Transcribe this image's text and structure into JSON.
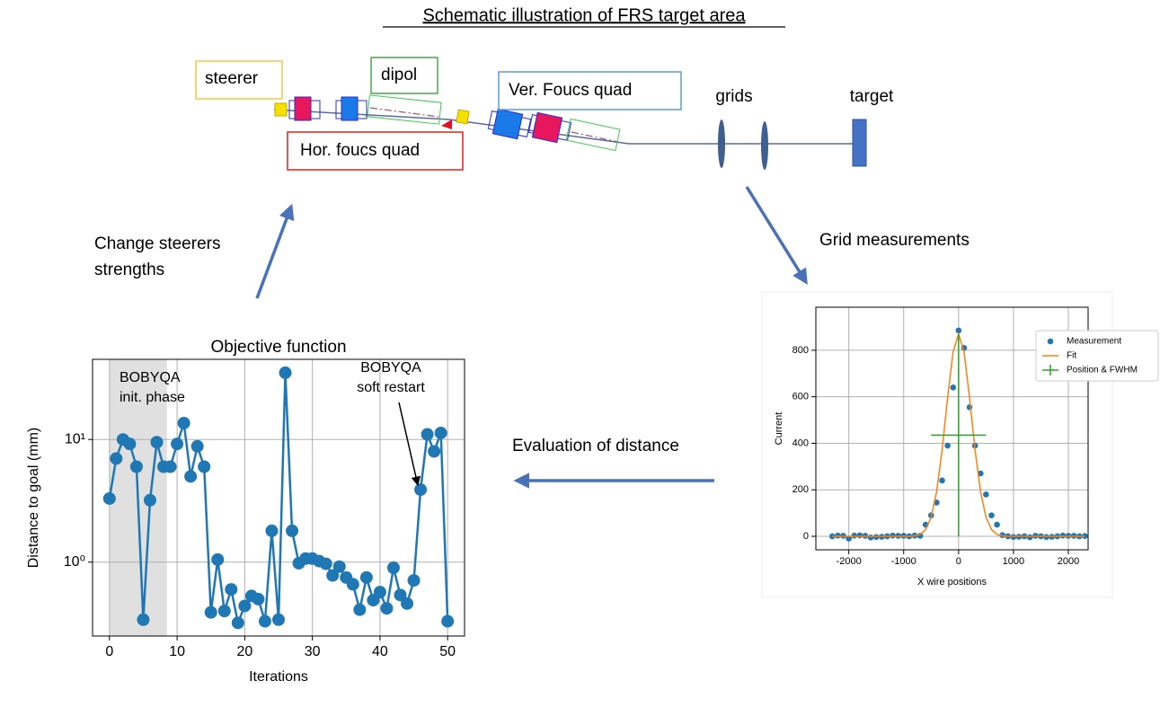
{
  "title": "Schematic illustration of FRS target area",
  "labels": {
    "steerer": "steerer",
    "dipol": "dipol",
    "ver_quad": "Ver. Foucs quad",
    "hor_quad": "Hor. foucs quad",
    "grids": "grids",
    "target": "target"
  },
  "steps": {
    "change": [
      "Change steerers",
      "strengths"
    ],
    "grid": "Grid measurements",
    "evaluation": "Evaluation of distance"
  },
  "chart_data": [
    {
      "type": "line",
      "title": "Objective function",
      "x_label": "Iterations",
      "y_label": "Distance to goal (mm)",
      "log_y": true,
      "grid": true,
      "shade": [
        0,
        8.5
      ],
      "annotations": [
        [
          "BOBYQA",
          "init. phase"
        ],
        [
          "BOBYQA",
          "soft restart"
        ]
      ],
      "xlim": [
        -2.5,
        52.5
      ],
      "xticks": [
        0,
        10,
        20,
        30,
        40,
        50
      ],
      "ylim": [
        0.25,
        45
      ],
      "yticks": [
        {
          "value": 1,
          "label": "10⁰"
        },
        {
          "value": 10,
          "label": "10¹"
        }
      ],
      "x": [
        0,
        1,
        2,
        3,
        4,
        5,
        6,
        7,
        8,
        9,
        10,
        11,
        12,
        13,
        14,
        15,
        16,
        17,
        18,
        19,
        20,
        21,
        22,
        23,
        24,
        25,
        26,
        27,
        28,
        29,
        30,
        31,
        32,
        33,
        34,
        35,
        36,
        37,
        38,
        39,
        40,
        41,
        42,
        43,
        44,
        45,
        46,
        47,
        48,
        49,
        50
      ],
      "series": [
        {
          "name": null,
          "color": "#1f77b4",
          "marker": "o",
          "values": [
            3.3,
            7,
            10,
            9.2,
            6,
            0.34,
            3.2,
            9.5,
            6,
            6,
            9.2,
            13.6,
            5,
            8.8,
            6,
            0.39,
            1.05,
            0.4,
            0.6,
            0.32,
            0.44,
            0.53,
            0.5,
            0.33,
            1.8,
            0.34,
            35,
            1.8,
            0.98,
            1.07,
            1.07,
            1.02,
            0.97,
            0.78,
            0.92,
            0.75,
            0.66,
            0.41,
            0.75,
            0.49,
            0.57,
            0.42,
            0.9,
            0.54,
            0.46,
            0.71,
            3.9,
            11,
            8,
            11.3,
            0.33
          ]
        }
      ]
    },
    {
      "type": "scatter",
      "x_label": "X wire positions",
      "y_label": "Current",
      "grid": true,
      "legend": "upper right",
      "xlim": [
        -2600,
        2360
      ],
      "xticks": [
        -2000,
        -1000,
        0,
        1000,
        2000
      ],
      "ylim": [
        -58,
        985
      ],
      "yticks": [
        0,
        200,
        400,
        600,
        800
      ],
      "series": [
        {
          "name": "Measurement",
          "type": "scatter",
          "color": "#1f77b4",
          "x": [
            -2300,
            -2200,
            -2100,
            -2000,
            -1900,
            -1800,
            -1700,
            -1600,
            -1500,
            -1400,
            -1300,
            -1200,
            -1100,
            -1000,
            -900,
            -800,
            -700,
            -600,
            -500,
            -400,
            -300,
            -200,
            -100,
            0,
            100,
            200,
            300,
            400,
            500,
            600,
            700,
            800,
            900,
            1000,
            1100,
            1200,
            1300,
            1400,
            1500,
            1600,
            1700,
            1800,
            1900,
            2000,
            2100,
            2200,
            2300
          ],
          "values": [
            0,
            3,
            2,
            -10,
            3,
            4,
            2,
            -5,
            -3,
            -2,
            0,
            3,
            2,
            2,
            0,
            3,
            2,
            50,
            90,
            145,
            240,
            390,
            640,
            885,
            810,
            555,
            390,
            270,
            180,
            90,
            50,
            5,
            0,
            -3,
            -2,
            0,
            -4,
            2,
            0,
            -3,
            -2,
            0,
            3,
            2,
            2,
            0,
            1
          ]
        },
        {
          "name": "Fit",
          "type": "line",
          "color": "#ff7f0e",
          "x": [
            -2300,
            -2200,
            -2100,
            -2000,
            -1900,
            -1800,
            -1700,
            -1600,
            -1500,
            -1400,
            -1300,
            -1200,
            -1100,
            -1000,
            -900,
            -800,
            -700,
            -600,
            -500,
            -400,
            -300,
            -200,
            -100,
            0,
            100,
            200,
            300,
            400,
            500,
            600,
            700,
            800,
            900,
            1000,
            1100,
            1200,
            1300,
            1400,
            1500,
            1600,
            1700,
            1800,
            1900,
            2000,
            2100,
            2200,
            2300
          ],
          "values": [
            0,
            0,
            0,
            0,
            0,
            0,
            0,
            0,
            0,
            0,
            0,
            0,
            0,
            0,
            0,
            2,
            8,
            29,
            82,
            192,
            371,
            596,
            792,
            870,
            792,
            596,
            371,
            192,
            82,
            29,
            8,
            2,
            0,
            0,
            0,
            0,
            0,
            0,
            0,
            0,
            0,
            0,
            0,
            0,
            0,
            0,
            0
          ]
        },
        {
          "name": "Position & FWHM",
          "type": "errorbar",
          "color": "#2ca02c",
          "x": [
            0
          ],
          "values": [
            435
          ],
          "xerr": [
            500
          ],
          "yerr": [
            435
          ]
        }
      ]
    }
  ]
}
